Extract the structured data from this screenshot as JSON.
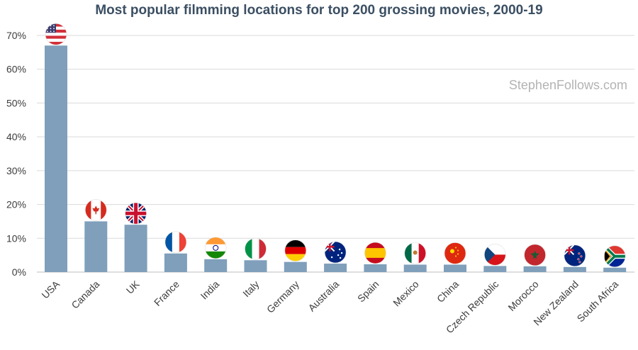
{
  "chart_data": {
    "type": "bar",
    "title": "Most popular filmming locations for top 200 grossing movies, 2000-19",
    "watermark": "StephenFollows.com",
    "xlabel": "",
    "ylabel": "",
    "categories": [
      "USA",
      "Canada",
      "UK",
      "France",
      "India",
      "Italy",
      "Germany",
      "Australia",
      "Spain",
      "Mexico",
      "China",
      "Czech Republic",
      "Morocco",
      "New Zealand",
      "South Africa"
    ],
    "values": [
      67,
      15,
      14,
      5.5,
      3.8,
      3.5,
      3.0,
      2.5,
      2.3,
      2.2,
      2.2,
      1.8,
      1.7,
      1.5,
      1.3
    ],
    "ylim": [
      0,
      70
    ],
    "yticks": [
      0,
      10,
      20,
      30,
      40,
      50,
      60,
      70
    ],
    "ytick_labels": [
      "0%",
      "10%",
      "20%",
      "30%",
      "40%",
      "50%",
      "60%",
      "70%"
    ],
    "grid": true,
    "legend": "none",
    "flag_icons": [
      "flag-usa-icon",
      "flag-canada-icon",
      "flag-uk-icon",
      "flag-france-icon",
      "flag-india-icon",
      "flag-italy-icon",
      "flag-germany-icon",
      "flag-australia-icon",
      "flag-spain-icon",
      "flag-mexico-icon",
      "flag-china-icon",
      "flag-czech-republic-icon",
      "flag-morocco-icon",
      "flag-new-zealand-icon",
      "flag-south-africa-icon"
    ],
    "colors": {
      "bar": "#7f9fbb",
      "grid": "#d9d9d9",
      "title": "#3b4f63",
      "axis_text": "#3d3d3d",
      "watermark": "#b3b3b3"
    }
  }
}
